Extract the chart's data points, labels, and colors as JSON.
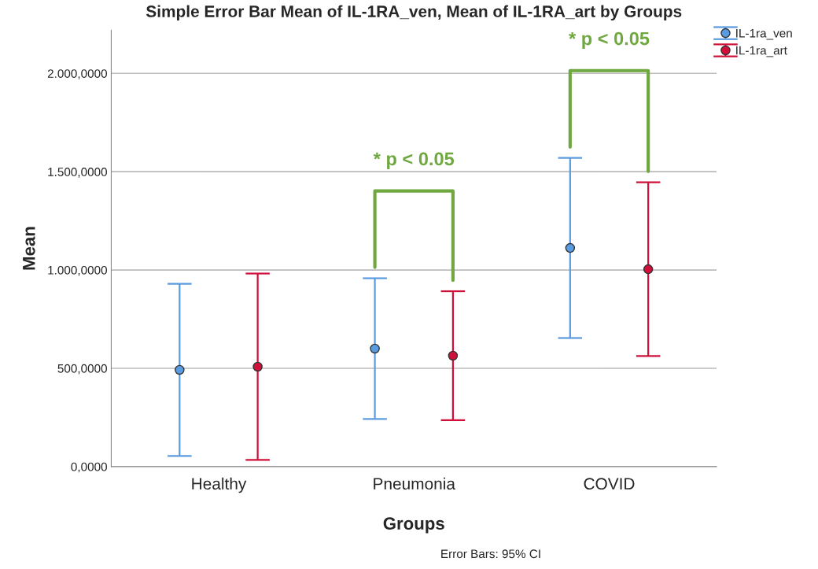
{
  "chart_data": {
    "type": "scatter",
    "title": "Simple Error Bar Mean of IL-1RA_ven, Mean of IL-1RA_art by Groups",
    "xlabel": "Groups",
    "ylabel": "Mean",
    "categories": [
      "Healthy",
      "Pneumonia",
      "COVID"
    ],
    "series": [
      {
        "name": "IL-1ra_ven",
        "color": "#5b9be0",
        "values": [
          492,
          600,
          1112
        ],
        "errors": [
          438,
          358,
          458
        ]
      },
      {
        "name": "IL-1ra_art",
        "color": "#d0103a",
        "values": [
          508,
          564,
          1004
        ],
        "errors": [
          474,
          328,
          442
        ]
      }
    ],
    "ylim": [
      0,
      2220
    ],
    "yticks": [
      {
        "value": 0,
        "label": "0,0000"
      },
      {
        "value": 500,
        "label": "500,0000"
      },
      {
        "value": 1000,
        "label": "1.000,0000"
      },
      {
        "value": 1500,
        "label": "1.500,0000"
      },
      {
        "value": 2000,
        "label": "2.000,0000"
      }
    ],
    "grid": "y",
    "legend": "top right",
    "marker": "circle",
    "annotations": [
      "* p < 0.05",
      "* p < 0.05",
      "Error Bars: 95% CI"
    ]
  }
}
